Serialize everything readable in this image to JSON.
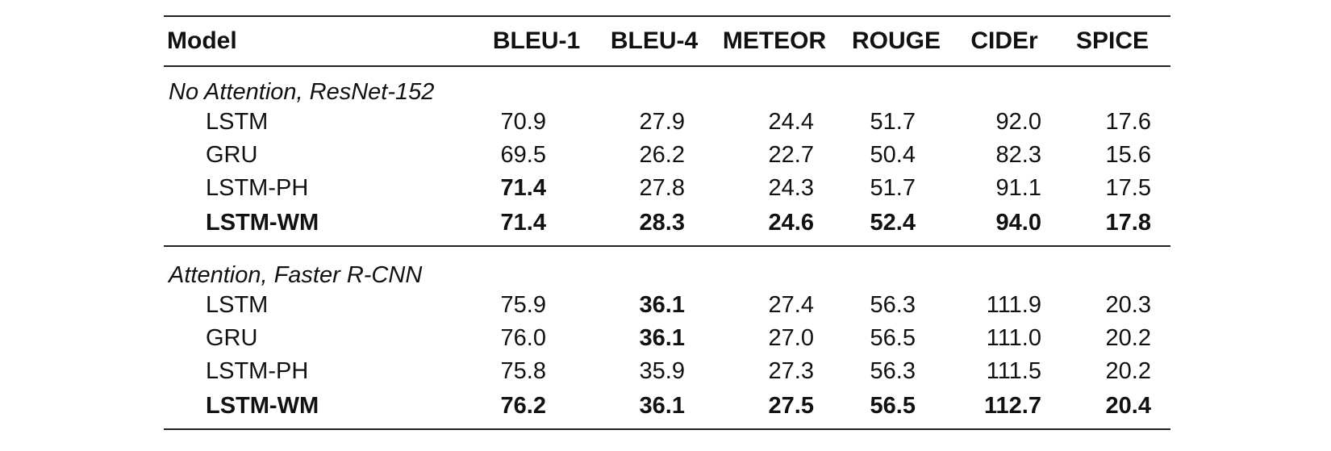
{
  "table": {
    "headers": [
      "Model",
      "BLEU-1",
      "BLEU-4",
      "METEOR",
      "ROUGE",
      "CIDEr",
      "SPICE"
    ],
    "groups": [
      {
        "title": "No Attention, ResNet-152",
        "rows": [
          {
            "model": "LSTM",
            "values": [
              "70.9",
              "27.9",
              "24.4",
              "51.7",
              "92.0",
              "17.6"
            ],
            "bold": [
              false,
              false,
              false,
              false,
              false,
              false
            ],
            "model_bold": false
          },
          {
            "model": "GRU",
            "values": [
              "69.5",
              "26.2",
              "22.7",
              "50.4",
              "82.3",
              "15.6"
            ],
            "bold": [
              false,
              false,
              false,
              false,
              false,
              false
            ],
            "model_bold": false
          },
          {
            "model": "LSTM-PH",
            "values": [
              "71.4",
              "27.8",
              "24.3",
              "51.7",
              "91.1",
              "17.5"
            ],
            "bold": [
              true,
              false,
              false,
              false,
              false,
              false
            ],
            "model_bold": false
          },
          {
            "model": "LSTM-WM",
            "values": [
              "71.4",
              "28.3",
              "24.6",
              "52.4",
              "94.0",
              "17.8"
            ],
            "bold": [
              true,
              true,
              true,
              true,
              true,
              true
            ],
            "model_bold": true
          }
        ]
      },
      {
        "title": "Attention, Faster R-CNN",
        "rows": [
          {
            "model": "LSTM",
            "values": [
              "75.9",
              "36.1",
              "27.4",
              "56.3",
              "111.9",
              "20.3"
            ],
            "bold": [
              false,
              true,
              false,
              false,
              false,
              false
            ],
            "model_bold": false
          },
          {
            "model": "GRU",
            "values": [
              "76.0",
              "36.1",
              "27.0",
              "56.5",
              "111.0",
              "20.2"
            ],
            "bold": [
              false,
              true,
              false,
              false,
              false,
              false
            ],
            "model_bold": false
          },
          {
            "model": "LSTM-PH",
            "values": [
              "75.8",
              "35.9",
              "27.3",
              "56.3",
              "111.5",
              "20.2"
            ],
            "bold": [
              false,
              false,
              false,
              false,
              false,
              false
            ],
            "model_bold": false
          },
          {
            "model": "LSTM-WM",
            "values": [
              "76.2",
              "36.1",
              "27.5",
              "56.5",
              "112.7",
              "20.4"
            ],
            "bold": [
              true,
              true,
              true,
              true,
              true,
              true
            ],
            "model_bold": true
          }
        ]
      }
    ]
  }
}
